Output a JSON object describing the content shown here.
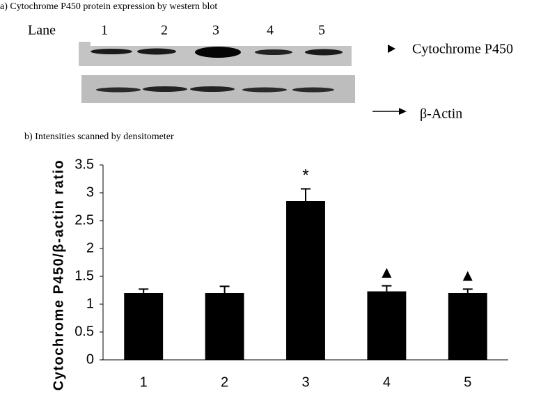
{
  "blot": {
    "title": "a) Cytochrome P450 protein expression by western blot",
    "lane_label": "Lane",
    "lanes": [
      "1",
      "2",
      "3",
      "4",
      "5"
    ],
    "labels": [
      "Cytochrome P450",
      "β-Actin"
    ]
  },
  "chart_data": {
    "type": "bar",
    "title": "b) Intensities scanned by densitometer",
    "y_label": "Cytochrome P450/β-actin ratio",
    "categories": [
      "1",
      "2",
      "3",
      "4",
      "5"
    ],
    "values": [
      1.2,
      1.2,
      2.85,
      1.23,
      1.2
    ],
    "errors": [
      0.07,
      0.12,
      0.22,
      0.1,
      0.07
    ],
    "annotations": [
      null,
      null,
      "*",
      "▲",
      "▲"
    ],
    "color": "#000000",
    "ylim": [
      0,
      3.5
    ],
    "yticks": [
      0,
      0.5,
      1,
      1.5,
      2,
      2.5,
      3,
      3.5
    ],
    "grid": false
  }
}
